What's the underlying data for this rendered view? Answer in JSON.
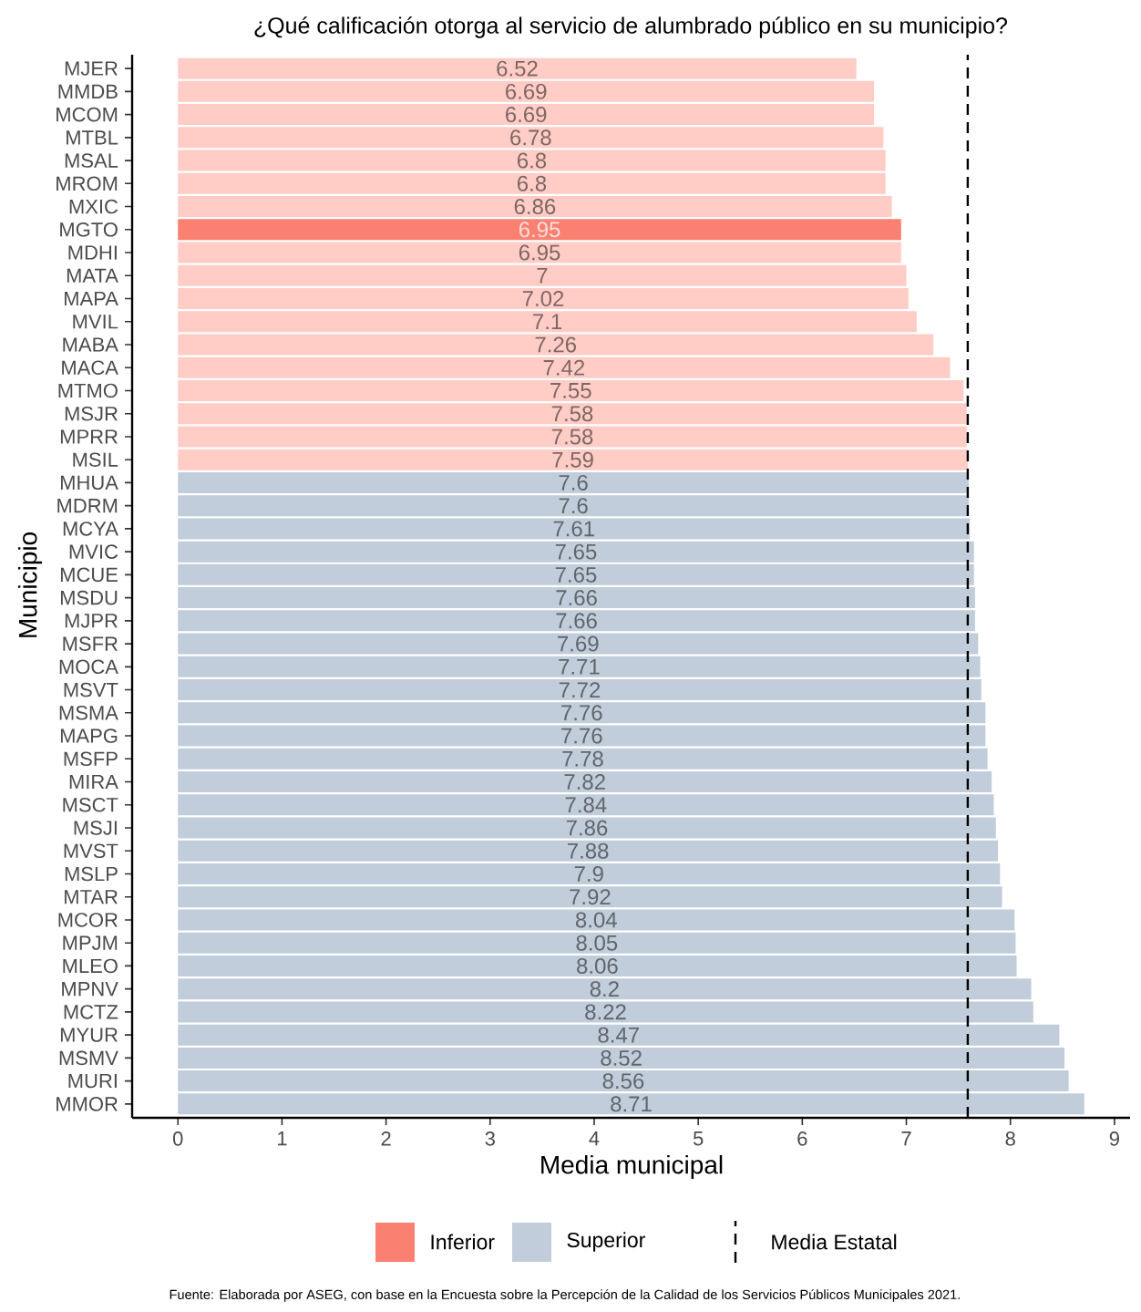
{
  "chart_data": {
    "type": "bar",
    "orientation": "horizontal",
    "title": "¿Qué calificación otorga al servicio de alumbrado público en su municipio?",
    "xlabel": "Media municipal",
    "ylabel": "Municipio",
    "categories": [
      "MJER",
      "MMDB",
      "MCOM",
      "MTBL",
      "MSAL",
      "MROM",
      "MXIC",
      "MGTO",
      "MDHI",
      "MATA",
      "MAPA",
      "MVIL",
      "MABA",
      "MACA",
      "MTMO",
      "MSJR",
      "MPRR",
      "MSIL",
      "MHUA",
      "MDRM",
      "MCYA",
      "MVIC",
      "MCUE",
      "MSDU",
      "MJPR",
      "MSFR",
      "MOCA",
      "MSVT",
      "MSMA",
      "MAPG",
      "MSFP",
      "MIRA",
      "MSCT",
      "MSJI",
      "MVST",
      "MSLP",
      "MTAR",
      "MCOR",
      "MPJM",
      "MLEO",
      "MPNV",
      "MCTZ",
      "MYUR",
      "MSMV",
      "MURI",
      "MMOR"
    ],
    "series": [
      {
        "name": "Inferior",
        "color": "#fa8072",
        "values": [
          6.52,
          6.69,
          6.69,
          6.78,
          6.8,
          6.8,
          6.86,
          6.95,
          6.95,
          7,
          7.02,
          7.1,
          7.26,
          7.42,
          7.55,
          7.58,
          7.58,
          7.59,
          null,
          null,
          null,
          null,
          null,
          null,
          null,
          null,
          null,
          null,
          null,
          null,
          null,
          null,
          null,
          null,
          null,
          null,
          null,
          null,
          null,
          null,
          null,
          null,
          null,
          null,
          null,
          null
        ],
        "colors": [
          "#ffcdc6",
          "#ffcdc6",
          "#ffcdc6",
          "#ffcdc6",
          "#ffcdc6",
          "#ffcdc6",
          "#ffcdc6",
          "#fa8072",
          "#ffcdc6",
          "#ffcdc6",
          "#ffcdc6",
          "#ffcdc6",
          "#ffcdc6",
          "#ffcdc6",
          "#ffcdc6",
          "#ffcdc6",
          "#ffcdc6",
          "#ffcdc6",
          null,
          null,
          null,
          null,
          null,
          null,
          null,
          null,
          null,
          null,
          null,
          null,
          null,
          null,
          null,
          null,
          null,
          null,
          null,
          null,
          null,
          null,
          null,
          null,
          null,
          null,
          null,
          null
        ]
      },
      {
        "name": "Superior",
        "color": "#c1cdda",
        "values": [
          null,
          null,
          null,
          null,
          null,
          null,
          null,
          null,
          null,
          null,
          null,
          null,
          null,
          null,
          null,
          null,
          null,
          null,
          7.6,
          7.6,
          7.61,
          7.65,
          7.65,
          7.66,
          7.66,
          7.69,
          7.71,
          7.72,
          7.76,
          7.76,
          7.78,
          7.82,
          7.84,
          7.86,
          7.88,
          7.9,
          7.92,
          8.04,
          8.05,
          8.06,
          8.2,
          8.22,
          8.47,
          8.52,
          8.56,
          8.71
        ],
        "colors": [
          null,
          null,
          null,
          null,
          null,
          null,
          null,
          null,
          null,
          null,
          null,
          null,
          null,
          null,
          null,
          null,
          null,
          null,
          "#c1cdda",
          "#c1cdda",
          "#c1cdda",
          "#c1cdda",
          "#c1cdda",
          "#c1cdda",
          "#c1cdda",
          "#c1cdda",
          "#c1cdda",
          "#c1cdda",
          "#c1cdda",
          "#c1cdda",
          "#c1cdda",
          "#c1cdda",
          "#c1cdda",
          "#c1cdda",
          "#c1cdda",
          "#c1cdda",
          "#c1cdda",
          "#c1cdda",
          "#c1cdda",
          "#c1cdda",
          "#c1cdda",
          "#c1cdda",
          "#c1cdda",
          "#c1cdda",
          "#c1cdda",
          "#c1cdda"
        ]
      }
    ],
    "xlim": [
      -0.44,
      9.15
    ],
    "xticks": [
      0,
      1,
      2,
      3,
      4,
      5,
      6,
      7,
      8,
      9
    ],
    "ref_lines": [
      {
        "axis": "x",
        "value": 7.59,
        "label": "Media Estatal",
        "color": "#000000",
        "line_style": "dashed"
      }
    ],
    "data_labels": true,
    "legend": "bottom",
    "annotations": [
      "Fuente: Elaborada por ASEG, con base en la Encuesta sobre la Percepción de la Calidad de los Servicios Públicos Municipales 2021."
    ]
  }
}
